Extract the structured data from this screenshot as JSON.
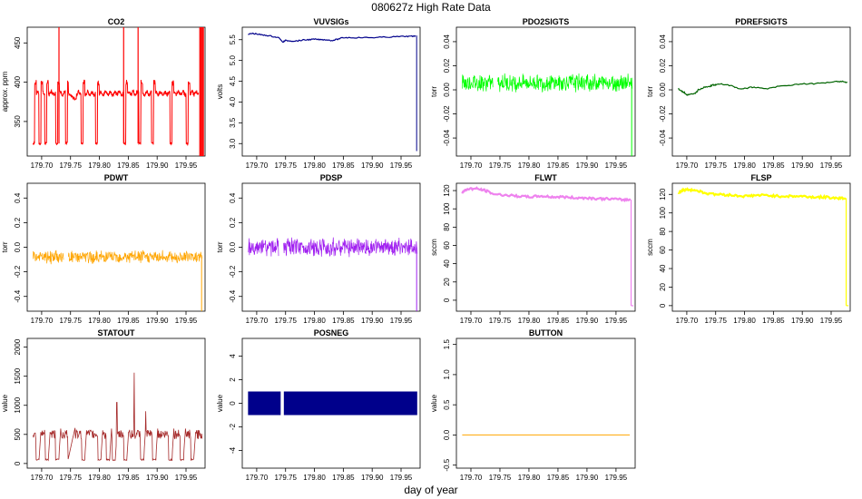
{
  "title": "080627z   High Rate Data",
  "xlabel": "day of year",
  "chart_data": [
    {
      "type": "line",
      "title": "CO2",
      "ylabel": "approx. ppm",
      "color": "#ff0000",
      "xlim": [
        179.675,
        179.983
      ],
      "ylim": [
        306,
        470
      ],
      "yticks": [
        350,
        400,
        450
      ],
      "xticks": [
        179.7,
        179.75,
        179.8,
        179.85,
        179.9,
        179.95
      ],
      "kind": "co2",
      "baseline": 386,
      "dip": 322,
      "dips_at": [
        179.684,
        179.695,
        179.705,
        179.724,
        179.741,
        179.75,
        179.768,
        179.793,
        179.842,
        179.868,
        179.89,
        179.922,
        179.95
      ],
      "spikes_at": [
        179.73,
        179.842,
        179.867
      ],
      "end_spikes_at": [
        179.974,
        179.976,
        179.978,
        179.98
      ]
    },
    {
      "type": "line",
      "title": "VUVSIGs",
      "ylabel": "volts",
      "color": "#00008b",
      "xlim": [
        179.675,
        179.983
      ],
      "ylim": [
        2.7,
        5.8
      ],
      "yticks": [
        3.0,
        3.5,
        4.0,
        4.5,
        5.0,
        5.5
      ],
      "xticks": [
        179.7,
        179.75,
        179.8,
        179.85,
        179.9,
        179.95
      ],
      "kind": "vuv",
      "x": [
        179.685,
        179.69,
        179.7,
        179.71,
        179.72,
        179.73,
        179.74,
        179.745,
        179.75,
        179.76,
        179.77,
        179.78,
        179.79,
        179.8,
        179.81,
        179.82,
        179.83,
        179.84,
        179.85,
        179.86,
        179.88,
        179.9,
        179.92,
        179.94,
        179.96,
        179.97,
        179.975
      ],
      "y": [
        5.62,
        5.65,
        5.64,
        5.61,
        5.6,
        5.57,
        5.54,
        5.44,
        5.48,
        5.47,
        5.47,
        5.49,
        5.5,
        5.51,
        5.5,
        5.5,
        5.48,
        5.51,
        5.55,
        5.55,
        5.55,
        5.55,
        5.56,
        5.57,
        5.58,
        5.58,
        5.6
      ],
      "end_drop": 2.82
    },
    {
      "type": "line",
      "title": "PDO2SIGTS",
      "ylabel": "torr",
      "color": "#00ff00",
      "xlim": [
        179.675,
        179.983
      ],
      "ylim": [
        -0.055,
        0.052
      ],
      "yticks": [
        -0.04,
        -0.02,
        0.0,
        0.02,
        0.04
      ],
      "xticks": [
        179.7,
        179.75,
        179.8,
        179.85,
        179.9,
        179.95
      ],
      "kind": "noise",
      "center": 0.006,
      "amp": 0.007,
      "gap": [
        179.738,
        179.746
      ],
      "end_drop": -0.055
    },
    {
      "type": "line",
      "title": "PDREFSIGTS",
      "ylabel": "torr",
      "color": "#006400",
      "xlim": [
        179.675,
        179.983
      ],
      "ylim": [
        -0.055,
        0.052
      ],
      "yticks": [
        -0.04,
        -0.02,
        0.0,
        0.02,
        0.04
      ],
      "xticks": [
        179.7,
        179.75,
        179.8,
        179.85,
        179.9,
        179.95
      ],
      "kind": "line",
      "x": [
        179.685,
        179.69,
        179.695,
        179.7,
        179.705,
        179.715,
        179.72,
        179.73,
        179.74,
        179.745,
        179.75,
        179.76,
        179.77,
        179.78,
        179.79,
        179.8,
        179.81,
        179.82,
        179.84,
        179.86,
        179.88,
        179.9,
        179.92,
        179.94,
        179.96,
        179.97,
        179.978
      ],
      "y": [
        0.001,
        -0.001,
        -0.002,
        -0.004,
        -0.004,
        -0.003,
        0.0,
        0.002,
        0.003,
        0.004,
        0.004,
        0.005,
        0.004,
        0.003,
        0.001,
        0.001,
        0.002,
        0.002,
        0.001,
        0.003,
        0.004,
        0.005,
        0.005,
        0.006,
        0.007,
        0.007,
        0.006
      ]
    },
    {
      "type": "line",
      "title": "PDWT",
      "ylabel": "torr",
      "color": "#ffa500",
      "xlim": [
        179.675,
        179.983
      ],
      "ylim": [
        -0.52,
        0.52
      ],
      "yticks": [
        -0.4,
        -0.2,
        0.0,
        0.2,
        0.4
      ],
      "xticks": [
        179.7,
        179.75,
        179.8,
        179.85,
        179.9,
        179.95
      ],
      "kind": "noise",
      "center": -0.08,
      "amp": 0.05,
      "gap": [
        179.738,
        179.746
      ],
      "end_drop": -0.52
    },
    {
      "type": "line",
      "title": "PDSP",
      "ylabel": "torr",
      "color": "#a020f0",
      "xlim": [
        179.675,
        179.983
      ],
      "ylim": [
        -0.52,
        0.52
      ],
      "yticks": [
        -0.4,
        -0.2,
        0.0,
        0.2,
        0.4
      ],
      "xticks": [
        179.7,
        179.75,
        179.8,
        179.85,
        179.9,
        179.95
      ],
      "kind": "noise",
      "center": 0.0,
      "amp": 0.07,
      "gap": [
        179.738,
        179.746
      ],
      "end_drop": -0.52
    },
    {
      "type": "line",
      "title": "FLWT",
      "ylabel": "sccm",
      "color": "#ee82ee",
      "xlim": [
        179.675,
        179.983
      ],
      "ylim": [
        -12,
        128
      ],
      "yticks": [
        0,
        20,
        40,
        60,
        80,
        100,
        120
      ],
      "xticks": [
        179.7,
        179.75,
        179.8,
        179.85,
        179.9,
        179.95
      ],
      "kind": "flow",
      "x": [
        179.685,
        179.695,
        179.71,
        179.725,
        179.74,
        179.76,
        179.78,
        179.8,
        179.82,
        179.84,
        179.86,
        179.88,
        179.9,
        179.92,
        179.94,
        179.96,
        179.975
      ],
      "y": [
        118,
        122,
        122,
        120,
        116,
        115,
        114,
        113,
        114,
        113,
        113,
        112,
        112,
        111,
        111,
        110,
        110
      ],
      "end_drop": -6
    },
    {
      "type": "line",
      "title": "FLSP",
      "ylabel": "sccm",
      "color": "#ffff00",
      "xlim": [
        179.675,
        179.983
      ],
      "ylim": [
        -6,
        132
      ],
      "yticks": [
        0,
        20,
        40,
        60,
        80,
        100,
        120
      ],
      "xticks": [
        179.7,
        179.75,
        179.8,
        179.85,
        179.9,
        179.95
      ],
      "kind": "flow",
      "x": [
        179.685,
        179.695,
        179.71,
        179.725,
        179.74,
        179.76,
        179.78,
        179.8,
        179.82,
        179.84,
        179.86,
        179.88,
        179.9,
        179.92,
        179.94,
        179.96,
        179.975
      ],
      "y": [
        122,
        125,
        125,
        123,
        120,
        120,
        119,
        118,
        119,
        119,
        118,
        118,
        118,
        117,
        117,
        116,
        116
      ],
      "end_drop": 0
    },
    {
      "type": "line",
      "title": "STATOUT",
      "ylabel": "value",
      "color": "#a52a2a",
      "xlim": [
        179.675,
        179.983
      ],
      "ylim": [
        -80,
        2150
      ],
      "yticks": [
        0,
        500,
        1000,
        1500,
        2000
      ],
      "xticks": [
        179.7,
        179.75,
        179.8,
        179.85,
        179.9,
        179.95
      ],
      "kind": "stat",
      "lows_at": [
        179.69,
        179.706,
        179.724,
        179.745,
        179.769,
        179.797,
        179.812,
        179.822,
        179.842,
        179.871,
        179.892,
        179.92,
        179.94,
        179.958,
        179.978
      ],
      "peaks_at": [
        179.83,
        179.86,
        179.88
      ],
      "peak_values": [
        1050,
        1560,
        900
      ]
    },
    {
      "type": "bar",
      "title": "POSNEG",
      "ylabel": "value",
      "color": "#00008b",
      "xlim": [
        179.675,
        179.983
      ],
      "ylim": [
        -5.5,
        5.5
      ],
      "yticks": [
        -4,
        -2,
        0,
        2,
        4
      ],
      "xticks": [
        179.7,
        179.75,
        179.8,
        179.85,
        179.9,
        179.95
      ],
      "kind": "band",
      "band": [
        -1,
        1
      ],
      "gap": [
        179.7415,
        179.747
      ],
      "x_range": [
        179.685,
        179.978
      ]
    },
    {
      "type": "line",
      "title": "BUTTON",
      "ylabel": "value",
      "color": "#ffa500",
      "xlim": [
        179.675,
        179.983
      ],
      "ylim": [
        -0.55,
        1.6
      ],
      "yticks": [
        -0.5,
        0.0,
        0.5,
        1.0,
        1.5
      ],
      "xticks": [
        179.7,
        179.75,
        179.8,
        179.85,
        179.9,
        179.95
      ],
      "kind": "flat",
      "value": 0,
      "x_range": [
        179.685,
        179.983
      ]
    }
  ]
}
